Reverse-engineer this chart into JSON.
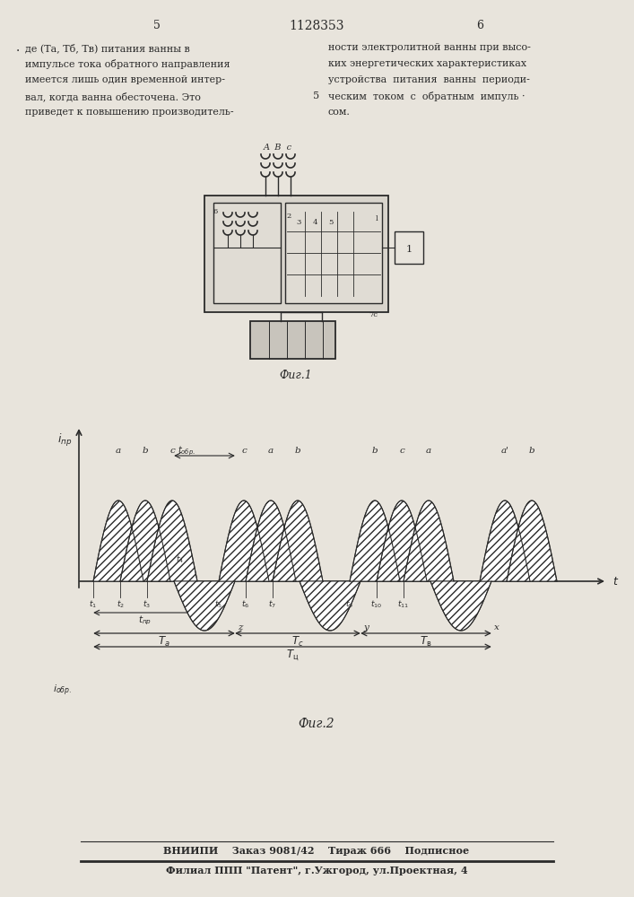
{
  "page_title": "1128353",
  "page_num_left": "5",
  "page_num_right": "6",
  "text_left_line1": "де (Tа, Tб, Tв) питания ванны в",
  "text_left_line2": "импульсе тока обратного направления",
  "text_left_line3": "имеется лишь один временной интер-",
  "text_left_line4": "вал, когда ванна обесточена. Это",
  "text_left_line5": "приведет к повышению производитель-",
  "text_right_line1": "ности электролитной ванны при высо-",
  "text_right_line2": "ких энергетических характеристиках",
  "text_right_line3": "устройства  питания  ванны  периоди-",
  "text_right_line4": "ческим  током  с  обратным  импуль ·",
  "text_right_line5": "сом.",
  "fig1_caption": "Фиг.1",
  "fig2_caption": "Фиг.2",
  "bottom_line1": "ВНИИПИ    Заказ 9081/42    Тираж 666    Подписное",
  "bottom_line2": "Филиал ППП \"Патент\", г.Ужгород, ул.Проектная, 4",
  "bg_color": "#e8e4dc",
  "text_color": "#2a2a2a"
}
